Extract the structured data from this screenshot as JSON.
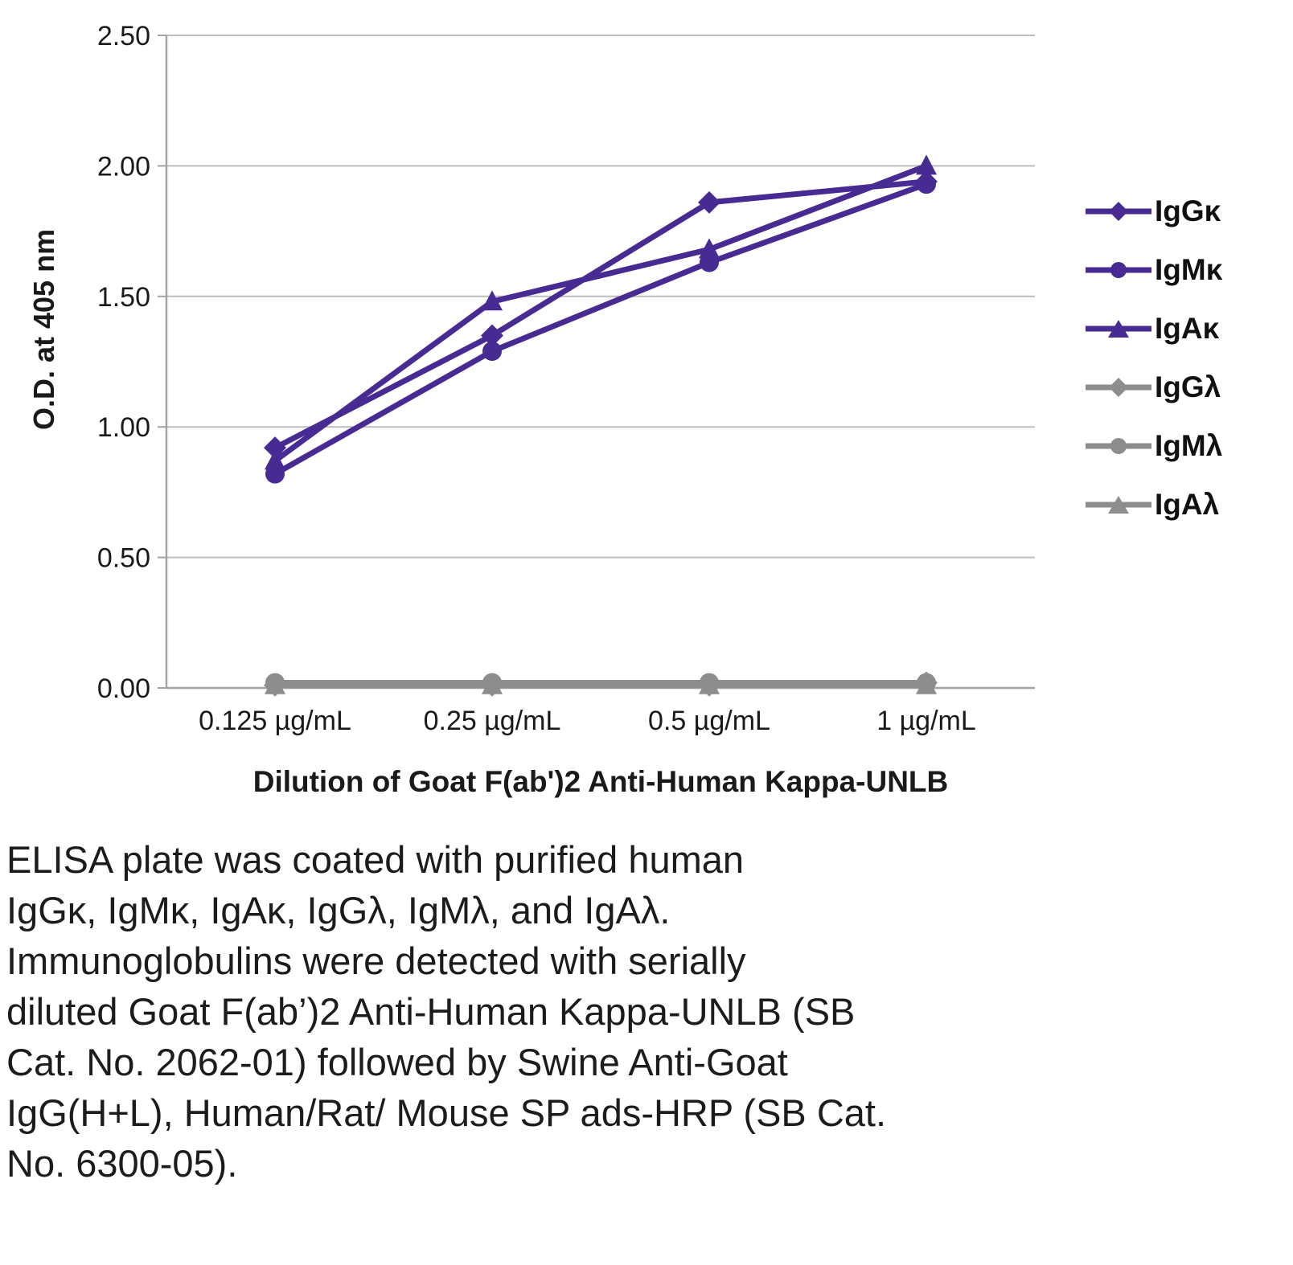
{
  "chart_data": {
    "type": "line",
    "title": "",
    "xlabel": "Dilution of Goat F(ab')2 Anti-Human Kappa-UNLB",
    "ylabel": "O.D. at 405 nm",
    "x_categories": [
      "0.125 µg/mL",
      "0.25 µg/mL",
      "0.5 µg/mL",
      "1 µg/mL"
    ],
    "ylim": [
      0,
      2.5
    ],
    "ytick_step": 0.5,
    "ytick_labels": [
      "0.00",
      "0.50",
      "1.00",
      "1.50",
      "2.00",
      "2.50"
    ],
    "grid": true,
    "legend_position": "right",
    "colors": {
      "purple": "#472b93",
      "gray": "#8d8d8d",
      "grid": "#bdbdbd",
      "axis": "#a3a3a3",
      "text": "#1a1a1a"
    },
    "series": [
      {
        "name": "IgGκ",
        "marker": "diamond",
        "color": "#472b93",
        "values": [
          0.92,
          1.35,
          1.86,
          1.94
        ]
      },
      {
        "name": "IgMκ",
        "marker": "circle",
        "color": "#472b93",
        "values": [
          0.82,
          1.29,
          1.63,
          1.93
        ]
      },
      {
        "name": "IgAκ",
        "marker": "triangle",
        "color": "#472b93",
        "values": [
          0.87,
          1.48,
          1.68,
          2.0
        ]
      },
      {
        "name": "IgGλ",
        "marker": "diamond",
        "color": "#8d8d8d",
        "values": [
          0.01,
          0.01,
          0.01,
          0.02
        ]
      },
      {
        "name": "IgMλ",
        "marker": "circle",
        "color": "#8d8d8d",
        "values": [
          0.02,
          0.02,
          0.02,
          0.02
        ]
      },
      {
        "name": "IgAλ",
        "marker": "triangle",
        "color": "#8d8d8d",
        "values": [
          0.01,
          0.01,
          0.01,
          0.01
        ]
      }
    ]
  },
  "caption": {
    "text": "ELISA plate was coated with purified human\nIgGκ, IgMκ, IgAκ, IgGλ, IgMλ, and IgAλ.\nImmunoglobulins were detected with serially\ndiluted Goat F(ab’)2 Anti-Human Kappa-UNLB (SB\nCat. No. 2062-01) followed by Swine Anti-Goat\nIgG(H+L), Human/Rat/ Mouse SP ads-HRP (SB Cat.\nNo. 6300-05)."
  }
}
